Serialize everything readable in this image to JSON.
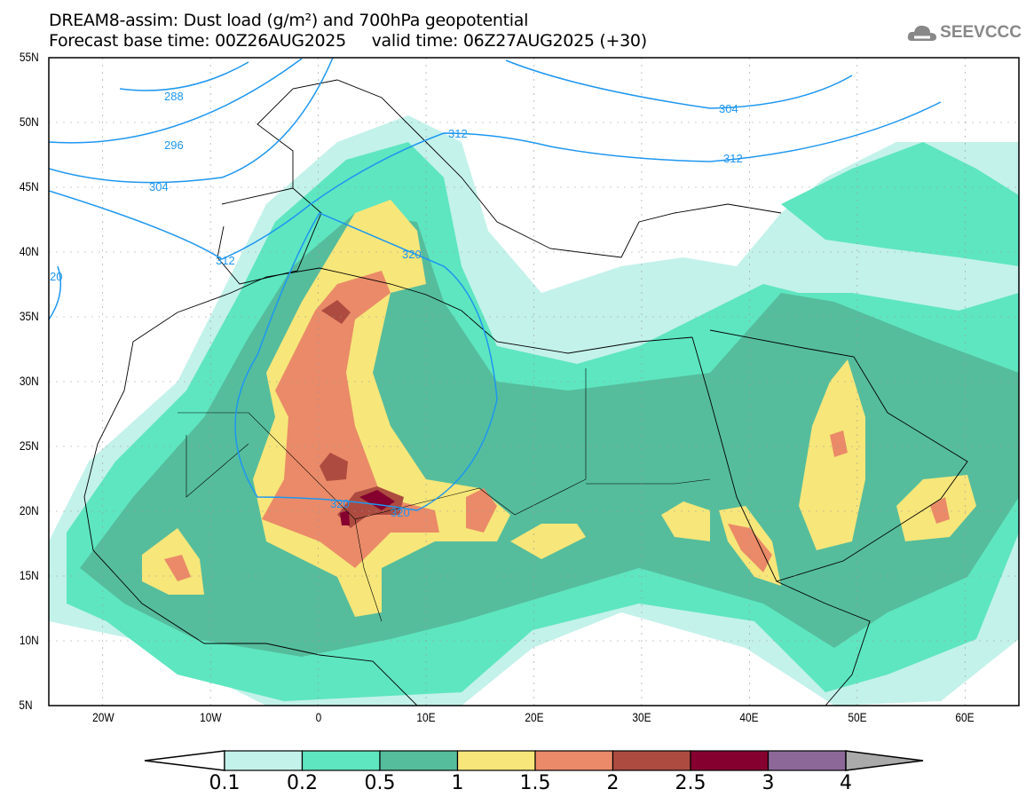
{
  "header": {
    "title_line1": "DREAM8-assim: Dust load (g/m²) and 700hPa geopotential",
    "title_line2": "Forecast base time: 00Z26AUG2025     valid time: 06Z27AUG2025 (+30)",
    "logo_text": "SEEVCCC"
  },
  "axes": {
    "lat_labels": [
      "55N",
      "50N",
      "45N",
      "40N",
      "35N",
      "30N",
      "25N",
      "20N",
      "15N",
      "10N",
      "5N"
    ],
    "lon_labels": [
      "20W",
      "10W",
      "0",
      "10E",
      "20E",
      "30E",
      "40E",
      "50E",
      "60E"
    ]
  },
  "contours": {
    "color": "#1e96f0",
    "labels": [
      "288",
      "296",
      "304",
      "312",
      "320",
      "320",
      "320",
      "304",
      "312",
      "312",
      "20"
    ]
  },
  "colorbar": {
    "ticks": [
      "0.1",
      "0.2",
      "0.5",
      "1",
      "1.5",
      "2",
      "2.5",
      "3",
      "4"
    ],
    "colors": [
      "#c3f2ea",
      "#5ee6c0",
      "#55bd9c",
      "#f7e67a",
      "#ea8a68",
      "#ad4b40",
      "#85002f",
      "#8c6898",
      "#aaaaaa"
    ]
  }
}
